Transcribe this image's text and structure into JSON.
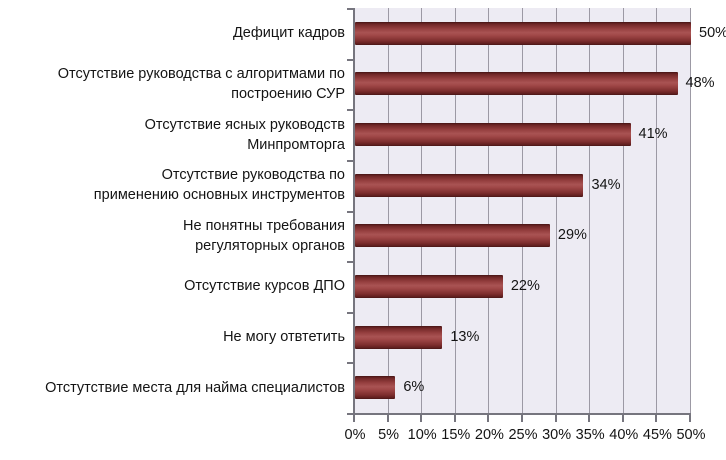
{
  "chart_data": {
    "type": "bar",
    "orientation": "horizontal",
    "title": "",
    "xlabel": "",
    "ylabel": "",
    "categories": [
      "Дефицит кадров",
      "Отсутствие руководства с алгоритмами по\nпостроению СУР",
      "Отсутствие ясных руководств\nМинпромторга",
      "Отсутствие руководства по\nприменению основных инструментов",
      "Не понятны требования\nрегуляторных органов",
      "Отсутствие курсов ДПО",
      "Не могу отвтетить",
      "Отстутствие места для найма специалистов"
    ],
    "values": [
      50,
      48,
      41,
      34,
      29,
      22,
      13,
      6
    ],
    "value_labels": [
      "50%",
      "48%",
      "41%",
      "34%",
      "29%",
      "22%",
      "13%",
      "6%"
    ],
    "x_ticks": [
      "0%",
      "5%",
      "10%",
      "15%",
      "20%",
      "25%",
      "30%",
      "35%",
      "40%",
      "45%",
      "50%"
    ],
    "x_tick_values": [
      0,
      5,
      10,
      15,
      20,
      25,
      30,
      35,
      40,
      45,
      50
    ],
    "xlim": [
      0,
      50
    ],
    "grid": "vertical",
    "legend": "none",
    "colors": {
      "bar": "#9c4343",
      "bar_highlight": "#a95353",
      "bar_shadow": "#451313",
      "plot_background": "#edebf3",
      "gridline": "#9c99a4",
      "axis": "#76757e",
      "text": "#141414",
      "page_background": "#ffffff"
    }
  }
}
